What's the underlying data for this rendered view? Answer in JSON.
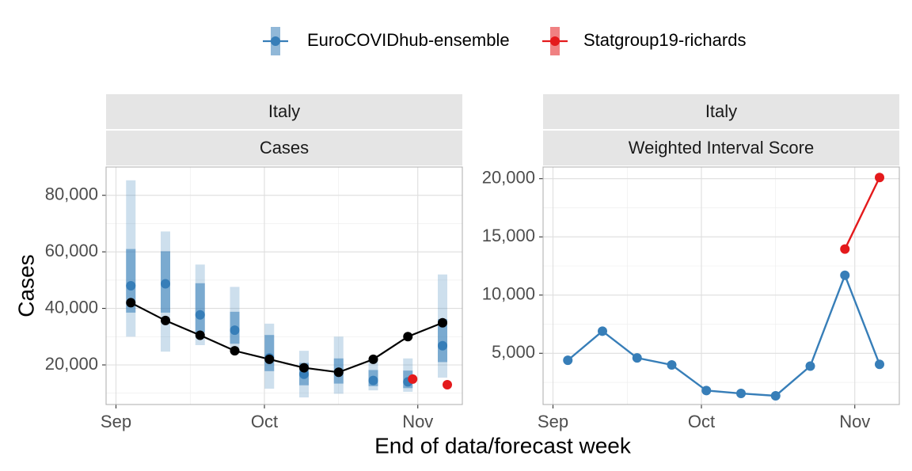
{
  "colors": {
    "ensemble": "#377eb8",
    "statgroup": "#e41a1c",
    "observed": "#000000"
  },
  "legend": {
    "items": [
      {
        "label": "EuroCOVIDhub-ensemble",
        "color": "#377eb8"
      },
      {
        "label": "Statgroup19-richards",
        "color": "#e41a1c"
      }
    ]
  },
  "axes": {
    "xlabel": "End of data/forecast week",
    "ylabel_left": "Cases"
  },
  "chart_data": [
    {
      "type": "line",
      "strip": [
        "Italy",
        "Cases"
      ],
      "x_ticks": [
        "Sep",
        "Oct",
        "Nov"
      ],
      "x_tick_dates": [
        "2021-09-01",
        "2021-10-01",
        "2021-11-01"
      ],
      "xlim": [
        "2021-08-30",
        "2021-11-10"
      ],
      "y_ticks": [
        "20,000",
        "40,000",
        "60,000",
        "80,000"
      ],
      "y_tick_values": [
        20000,
        40000,
        60000,
        80000
      ],
      "ylim": [
        6000,
        90000
      ],
      "grid": true,
      "observed": {
        "x": [
          "2021-09-04",
          "2021-09-11",
          "2021-09-18",
          "2021-09-25",
          "2021-10-02",
          "2021-10-09",
          "2021-10-16",
          "2021-10-23",
          "2021-10-30",
          "2021-11-06"
        ],
        "y": [
          42000,
          35700,
          30500,
          25000,
          22000,
          19000,
          17400,
          22000,
          30000,
          34900
        ]
      },
      "forecasts": [
        {
          "model": "EuroCOVIDhub-ensemble",
          "x": [
            "2021-09-04",
            "2021-09-11",
            "2021-09-18",
            "2021-09-25",
            "2021-10-02",
            "2021-10-09",
            "2021-10-16",
            "2021-10-23",
            "2021-10-30",
            "2021-11-06"
          ],
          "median": [
            48000,
            48700,
            37700,
            32300,
            22500,
            16700,
            17400,
            14500,
            14000,
            26800
          ],
          "inner_lower": [
            38500,
            38500,
            31500,
            27500,
            17800,
            12800,
            13400,
            12500,
            11800,
            21000
          ],
          "inner_upper": [
            61000,
            60200,
            48900,
            38800,
            30600,
            20700,
            22300,
            18200,
            18000,
            36200
          ],
          "outer_lower": [
            30000,
            24700,
            27000,
            25100,
            11600,
            8500,
            9800,
            11000,
            10500,
            15500
          ],
          "outer_upper": [
            85300,
            67200,
            55500,
            47600,
            34600,
            25000,
            30000,
            21500,
            22300,
            52000
          ]
        },
        {
          "model": "Statgroup19-richards",
          "x": [
            "2021-10-30",
            "2021-11-06"
          ],
          "median": [
            15000,
            13000
          ]
        }
      ]
    },
    {
      "type": "line",
      "strip": [
        "Italy",
        "Weighted Interval Score"
      ],
      "x_ticks": [
        "Sep",
        "Oct",
        "Nov"
      ],
      "x_tick_dates": [
        "2021-09-01",
        "2021-10-01",
        "2021-11-01"
      ],
      "xlim": [
        "2021-08-30",
        "2021-11-10"
      ],
      "y_ticks": [
        "5,000",
        "10,000",
        "15,000",
        "20,000"
      ],
      "y_tick_values": [
        5000,
        10000,
        15000,
        20000
      ],
      "ylim": [
        600,
        21000
      ],
      "grid": true,
      "series": [
        {
          "name": "EuroCOVIDhub-ensemble",
          "x": [
            "2021-09-04",
            "2021-09-11",
            "2021-09-18",
            "2021-09-25",
            "2021-10-02",
            "2021-10-09",
            "2021-10-16",
            "2021-10-23",
            "2021-10-30",
            "2021-11-06"
          ],
          "y": [
            4400,
            6900,
            4600,
            4000,
            1800,
            1550,
            1350,
            3900,
            11700,
            4050
          ]
        },
        {
          "name": "Statgroup19-richards",
          "x": [
            "2021-10-30",
            "2021-11-06"
          ],
          "y": [
            13950,
            20100
          ]
        }
      ]
    }
  ]
}
